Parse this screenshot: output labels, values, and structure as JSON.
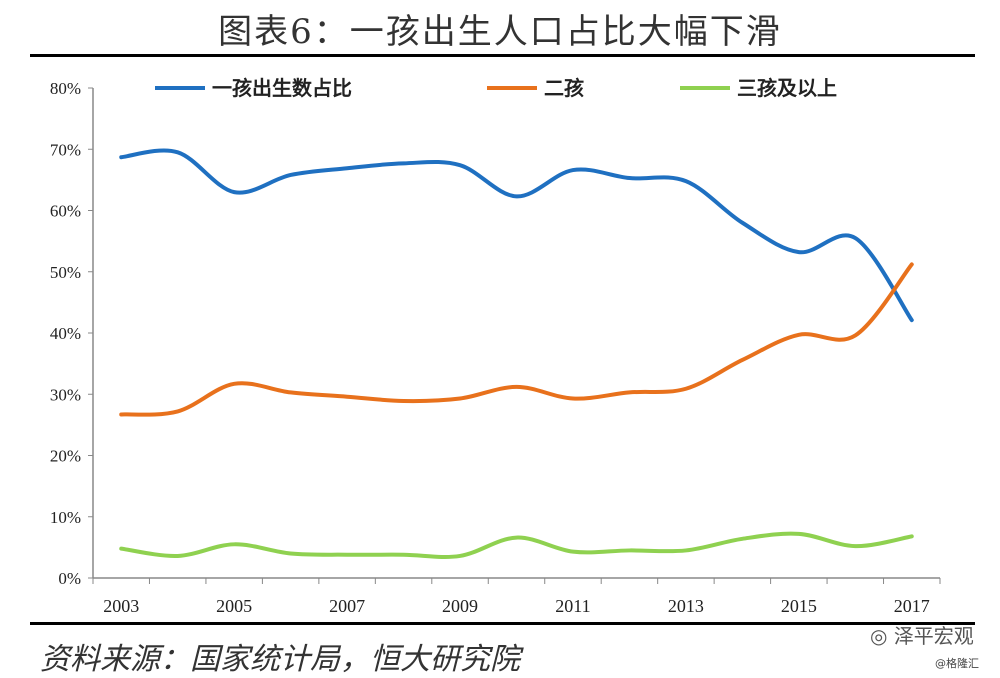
{
  "chart_data": {
    "type": "line",
    "title": "图表6：一孩出生人口占比大幅下滑",
    "xlabel": "",
    "ylabel": "",
    "ylim": [
      0,
      80
    ],
    "yticks": [
      "0%",
      "10%",
      "20%",
      "30%",
      "40%",
      "50%",
      "60%",
      "70%",
      "80%"
    ],
    "x": [
      2003,
      2004,
      2005,
      2006,
      2007,
      2008,
      2009,
      2010,
      2011,
      2012,
      2013,
      2014,
      2015,
      2016,
      2017
    ],
    "xtick_labels": [
      "2003",
      "2005",
      "2007",
      "2009",
      "2011",
      "2013",
      "2015",
      "2017"
    ],
    "legend_position": "top",
    "series": [
      {
        "name": "一孩出生数占比",
        "color": "#1f70c1",
        "values": [
          68.7,
          69.5,
          63.0,
          65.8,
          66.9,
          67.7,
          67.4,
          62.3,
          66.6,
          65.3,
          64.8,
          58.0,
          53.2,
          55.5,
          42.1
        ]
      },
      {
        "name": "二孩",
        "color": "#e8711c",
        "values": [
          26.7,
          27.2,
          31.7,
          30.3,
          29.6,
          28.9,
          29.3,
          31.2,
          29.3,
          30.3,
          30.9,
          35.6,
          39.7,
          39.6,
          51.2
        ]
      },
      {
        "name": "三孩及以上",
        "color": "#8fd150",
        "values": [
          4.8,
          3.6,
          5.5,
          4.0,
          3.8,
          3.8,
          3.6,
          6.6,
          4.3,
          4.5,
          4.5,
          6.4,
          7.2,
          5.2,
          6.8
        ]
      }
    ]
  },
  "footer": {
    "source": "资料来源：国家统计局，恒大研究院",
    "watermark": "泽平宏观",
    "watermark2": "@格隆汇"
  }
}
